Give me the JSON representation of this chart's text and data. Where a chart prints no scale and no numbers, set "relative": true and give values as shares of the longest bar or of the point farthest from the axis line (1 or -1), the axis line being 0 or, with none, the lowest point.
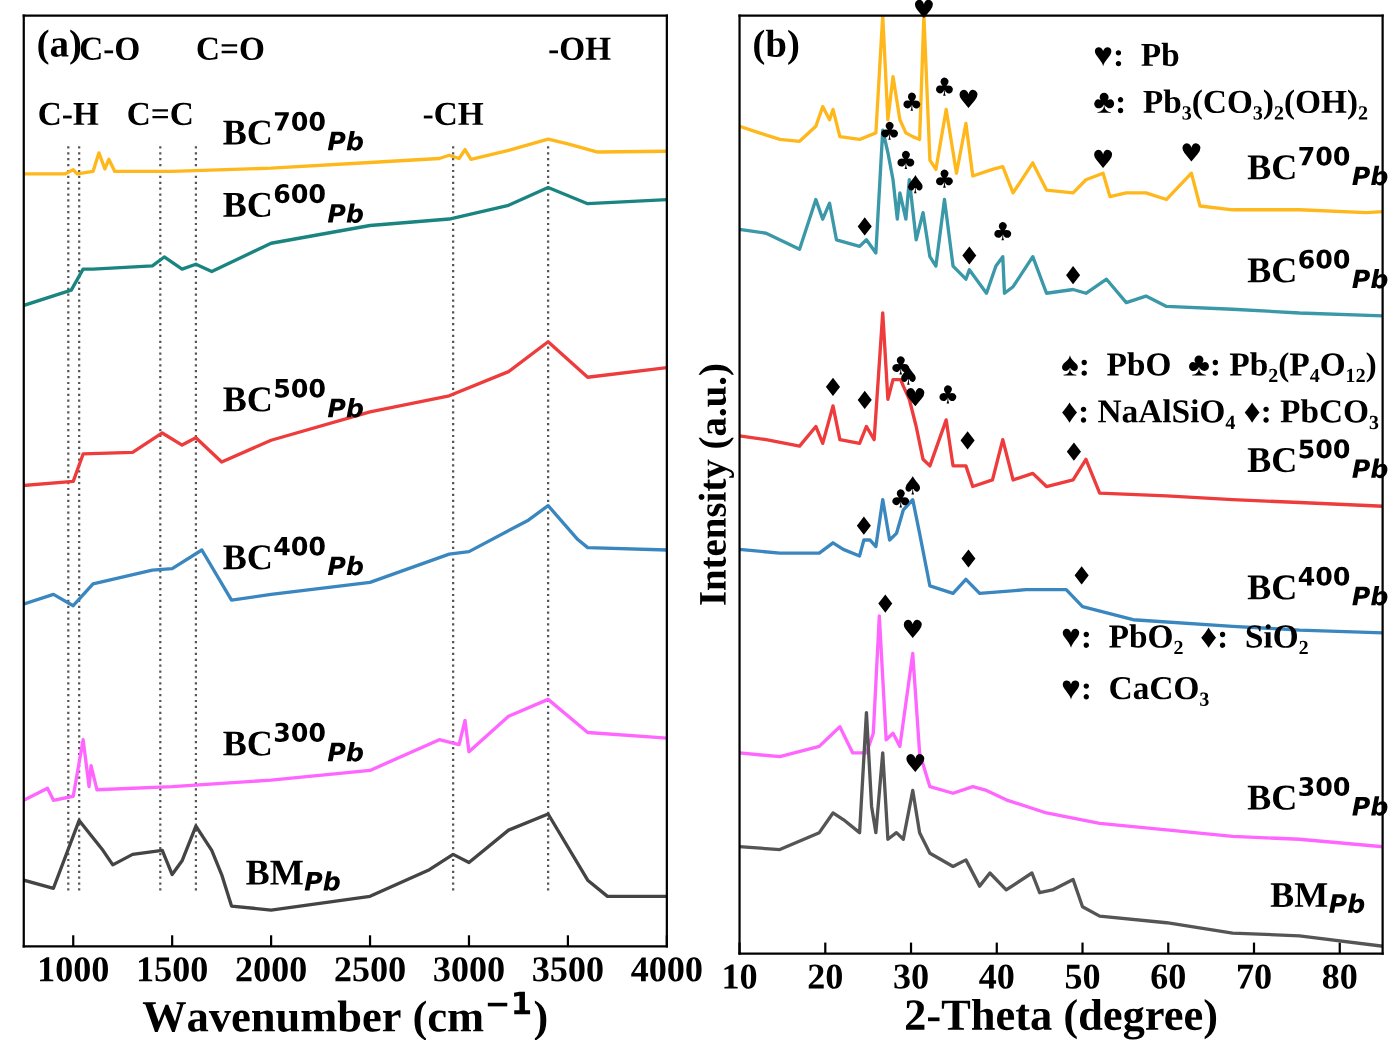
{
  "chart_data": [
    {
      "type": "line",
      "title": "(a)",
      "xlabel": "Wavenumber (cm$^{−1}$)",
      "relative": true,
      "xlim": [
        750,
        4000
      ],
      "xticks": [
        1000,
        1500,
        2000,
        2500,
        3000,
        3500,
        4000
      ],
      "grid": false,
      "line_style": "solid",
      "marker": "none",
      "series": [
        {
          "name": "BC$^{700}$$_{Pb}$",
          "color": "#ffb81c",
          "x": [
            750,
            960,
            1000,
            1020,
            1100,
            1130,
            1160,
            1180,
            1210,
            1500,
            2000,
            2500,
            2850,
            2900,
            2950,
            2980,
            3010,
            3200,
            3400,
            3500,
            3650,
            4000
          ],
          "values": [
            0.957,
            0.957,
            0.962,
            0.957,
            0.96,
            0.983,
            0.963,
            0.975,
            0.96,
            0.96,
            0.964,
            0.971,
            0.976,
            0.98,
            0.976,
            0.987,
            0.975,
            0.986,
            1.0,
            0.994,
            0.984,
            0.985
          ]
        },
        {
          "name": "BC$^{600}$$_{Pb}$",
          "color": "#1a8580",
          "x": [
            750,
            990,
            1050,
            1100,
            1400,
            1460,
            1550,
            1620,
            1700,
            2000,
            2500,
            2900,
            3200,
            3400,
            3600,
            4000
          ],
          "values": [
            0.794,
            0.813,
            0.839,
            0.839,
            0.843,
            0.854,
            0.839,
            0.845,
            0.836,
            0.871,
            0.893,
            0.901,
            0.918,
            0.94,
            0.92,
            0.925
          ]
        },
        {
          "name": "BC$^{500}$$_{Pb}$",
          "color": "#ee3b3b",
          "x": [
            750,
            1000,
            1050,
            1300,
            1450,
            1550,
            1620,
            1750,
            2000,
            2500,
            2900,
            3200,
            3400,
            3600,
            4000
          ],
          "values": [
            0.571,
            0.576,
            0.61,
            0.612,
            0.636,
            0.621,
            0.63,
            0.6,
            0.627,
            0.662,
            0.682,
            0.712,
            0.749,
            0.705,
            0.717
          ]
        },
        {
          "name": "BC$^{400}$$_{Pb}$",
          "color": "#3a87c0",
          "x": [
            750,
            900,
            1000,
            1100,
            1400,
            1500,
            1650,
            1800,
            2000,
            2500,
            2900,
            3000,
            3300,
            3400,
            3550,
            3600,
            4000
          ],
          "values": [
            0.424,
            0.436,
            0.422,
            0.449,
            0.466,
            0.468,
            0.491,
            0.429,
            0.436,
            0.451,
            0.486,
            0.489,
            0.528,
            0.546,
            0.504,
            0.494,
            0.491
          ]
        },
        {
          "name": "BC$^{300}$$_{Pb}$",
          "color": "#ff66ff",
          "x": [
            750,
            870,
            900,
            1000,
            1050,
            1080,
            1090,
            1120,
            1500,
            2000,
            2500,
            2850,
            2950,
            2980,
            3000,
            3200,
            3400,
            3600,
            4000
          ],
          "values": [
            0.181,
            0.196,
            0.181,
            0.186,
            0.256,
            0.198,
            0.224,
            0.194,
            0.198,
            0.206,
            0.218,
            0.256,
            0.25,
            0.28,
            0.241,
            0.285,
            0.306,
            0.265,
            0.258
          ]
        },
        {
          "name": "BM$_{Pb}$",
          "color": "#444444",
          "x": [
            750,
            900,
            1030,
            1150,
            1200,
            1300,
            1450,
            1500,
            1550,
            1620,
            1700,
            1750,
            1800,
            2000,
            2500,
            2800,
            2920,
            3000,
            3200,
            3400,
            3600,
            3700,
            4000
          ],
          "values": [
            0.082,
            0.072,
            0.156,
            0.119,
            0.101,
            0.114,
            0.119,
            0.089,
            0.106,
            0.149,
            0.119,
            0.089,
            0.05,
            0.045,
            0.062,
            0.095,
            0.114,
            0.104,
            0.144,
            0.164,
            0.082,
            0.062,
            0.062
          ]
        }
      ],
      "ref_lines": [
        {
          "axis": "x",
          "value": 975,
          "label": "C-H",
          "line_style": "dotted",
          "color": "#555555"
        },
        {
          "axis": "x",
          "value": 1030,
          "label": "C-O",
          "line_style": "dotted",
          "color": "#555555"
        },
        {
          "axis": "x",
          "value": 1440,
          "label": "C=C",
          "line_style": "dotted",
          "color": "#555555"
        },
        {
          "axis": "x",
          "value": 1620,
          "label": "C=O",
          "line_style": "dotted",
          "color": "#555555"
        },
        {
          "axis": "x",
          "value": 2920,
          "label": "-CH",
          "line_style": "dotted",
          "color": "#555555"
        },
        {
          "axis": "x",
          "value": 3400,
          "label": "-OH",
          "line_style": "dotted",
          "color": "#555555"
        }
      ]
    },
    {
      "type": "line",
      "title": "(b)",
      "xlabel": "2-Theta (degree)",
      "ylabel": "Intensity (a.u.)",
      "relative": true,
      "xlim": [
        10,
        85
      ],
      "xticks": [
        10,
        20,
        30,
        40,
        50,
        60,
        70,
        80
      ],
      "grid": false,
      "line_style": "solid",
      "marker": "none",
      "series": [
        {
          "name": "BC$^{700}$$_{Pb}$",
          "color": "#ffb81c",
          "x": [
            10,
            12.3,
            14.7,
            17.0,
            18.9,
            19.7,
            20.5,
            20.9,
            21.7,
            24.0,
            25.9,
            26.7,
            27.3,
            27.9,
            28.7,
            29.4,
            30.2,
            31.0,
            31.5,
            32.2,
            32.9,
            34.1,
            35.3,
            36.4,
            37.2,
            39.5,
            40.7,
            41.9,
            44.2,
            45.8,
            48.9,
            50.4,
            52.4,
            53.2,
            55.1,
            57.4,
            59.8,
            62.7,
            63.7,
            67.5,
            75.3,
            83.1,
            85
          ],
          "values": [
            0.882,
            0.875,
            0.868,
            0.866,
            0.882,
            0.903,
            0.889,
            0.9,
            0.871,
            0.868,
            0.875,
            1.0,
            0.889,
            0.935,
            0.889,
            0.875,
            0.871,
            0.868,
            1.0,
            0.846,
            0.836,
            0.9,
            0.832,
            0.885,
            0.829,
            0.836,
            0.839,
            0.811,
            0.843,
            0.814,
            0.811,
            0.825,
            0.832,
            0.807,
            0.811,
            0.811,
            0.804,
            0.832,
            0.797,
            0.793,
            0.793,
            0.79,
            0.791
          ]
        },
        {
          "name": "BC$^{600}$$_{Pb}$",
          "color": "#3a98a8",
          "x": [
            10,
            13.1,
            17.0,
            18.9,
            19.7,
            20.5,
            21.3,
            24.0,
            24.8,
            25.9,
            26.7,
            27.3,
            27.9,
            28.4,
            28.7,
            29.4,
            29.8,
            30.6,
            31.4,
            32.2,
            32.9,
            33.9,
            34.9,
            36.4,
            36.8,
            38.8,
            39.9,
            40.7,
            40.9,
            41.9,
            44.2,
            45.8,
            48.9,
            50.4,
            52.8,
            55.1,
            57.4,
            59.8,
            67.5,
            75.3,
            85
          ],
          "values": [
            0.772,
            0.768,
            0.751,
            0.804,
            0.783,
            0.8,
            0.761,
            0.754,
            0.761,
            0.747,
            0.878,
            0.854,
            0.825,
            0.783,
            0.811,
            0.783,
            0.825,
            0.761,
            0.79,
            0.743,
            0.733,
            0.804,
            0.733,
            0.719,
            0.729,
            0.704,
            0.733,
            0.743,
            0.704,
            0.711,
            0.743,
            0.704,
            0.708,
            0.704,
            0.719,
            0.694,
            0.701,
            0.69,
            0.687,
            0.683,
            0.68
          ]
        },
        {
          "name": "BC$^{500}$$_{Pb}$",
          "color": "#ee3b3b",
          "x": [
            10,
            13.1,
            17.0,
            18.9,
            19.7,
            20.9,
            21.7,
            24.0,
            24.8,
            25.7,
            26.7,
            27.3,
            27.9,
            28.8,
            29.1,
            29.8,
            30.6,
            31.4,
            32.2,
            34.1,
            34.9,
            36.4,
            37.2,
            39.5,
            40.7,
            41.9,
            44.2,
            45.8,
            48.9,
            50.4,
            52.0,
            59.8,
            67.5,
            75.3,
            85
          ],
          "values": [
            0.552,
            0.548,
            0.541,
            0.562,
            0.544,
            0.584,
            0.548,
            0.544,
            0.562,
            0.548,
            0.683,
            0.591,
            0.612,
            0.612,
            0.605,
            0.591,
            0.562,
            0.527,
            0.52,
            0.569,
            0.52,
            0.52,
            0.498,
            0.505,
            0.548,
            0.505,
            0.512,
            0.498,
            0.505,
            0.527,
            0.491,
            0.488,
            0.484,
            0.481,
            0.477
          ]
        },
        {
          "name": "BC$^{400}$$_{Pb}$",
          "color": "#3a87c0",
          "x": [
            10,
            14.7,
            19.3,
            20.9,
            22.1,
            24.0,
            24.5,
            25.2,
            25.9,
            26.7,
            27.5,
            28.3,
            29.1,
            30.2,
            31.0,
            32.2,
            34.9,
            36.4,
            38.0,
            43.4,
            48.1,
            50.0,
            55.9,
            67.5,
            75.3,
            85
          ],
          "values": [
            0.431,
            0.427,
            0.427,
            0.438,
            0.431,
            0.424,
            0.441,
            0.441,
            0.434,
            0.484,
            0.441,
            0.448,
            0.473,
            0.484,
            0.448,
            0.392,
            0.384,
            0.399,
            0.384,
            0.388,
            0.388,
            0.37,
            0.356,
            0.349,
            0.345,
            0.342
          ]
        },
        {
          "name": "BC$^{300}$$_{Pb}$",
          "color": "#ff66ff",
          "x": [
            10,
            14.7,
            19.3,
            20.9,
            21.7,
            23.2,
            24.8,
            25.6,
            26.3,
            27.1,
            27.9,
            28.7,
            30.2,
            31.0,
            32.2,
            34.9,
            37.2,
            38.8,
            41.1,
            45.8,
            52.0,
            59.8,
            67.5,
            75.3,
            85
          ],
          "values": [
            0.214,
            0.21,
            0.221,
            0.235,
            0.242,
            0.214,
            0.214,
            0.235,
            0.36,
            0.228,
            0.235,
            0.221,
            0.32,
            0.214,
            0.178,
            0.171,
            0.178,
            0.174,
            0.164,
            0.15,
            0.139,
            0.132,
            0.125,
            0.122,
            0.114
          ]
        },
        {
          "name": "BM$_{Pb}$",
          "color": "#555555",
          "x": [
            10,
            14.7,
            19.3,
            20.9,
            22.1,
            24.0,
            24.8,
            25.4,
            25.9,
            26.7,
            27.3,
            28.3,
            29.1,
            30.2,
            31.0,
            32.2,
            34.9,
            36.4,
            38.0,
            39.2,
            41.1,
            44.1,
            45.0,
            46.5,
            48.9,
            50.0,
            52.0,
            59.8,
            67.5,
            75.3,
            85
          ],
          "values": [
            0.114,
            0.111,
            0.129,
            0.15,
            0.143,
            0.129,
            0.257,
            0.157,
            0.129,
            0.214,
            0.122,
            0.129,
            0.122,
            0.174,
            0.129,
            0.107,
            0.093,
            0.1,
            0.072,
            0.086,
            0.068,
            0.086,
            0.065,
            0.068,
            0.079,
            0.05,
            0.04,
            0.033,
            0.022,
            0.019,
            0.008
          ]
        }
      ],
      "annotations": [
        "♥:  Pb",
        "♣:  Pb₃(CO₃)₂(OH)₂",
        "♠:  PbO  ♣: Pb₂(P₄O₁₂)",
        "♦: NaAlSiO₄ ♦: PbCO₃",
        "♥:  PbO₂  ♦:  SiO₂",
        "♥:  CaCO₃",
        {
          "text": "♥",
          "x": 31.5,
          "y": 0.992
        },
        {
          "text": "♣",
          "x": 33.9,
          "y": 0.909
        },
        {
          "text": "♥",
          "x": 36.7,
          "y": 0.896
        },
        {
          "text": "♣",
          "x": 30.1,
          "y": 0.893
        },
        {
          "text": "♥",
          "x": 52.4,
          "y": 0.832
        },
        {
          "text": "♥",
          "x": 62.7,
          "y": 0.839
        },
        {
          "text": "♣",
          "x": 27.5,
          "y": 0.862
        },
        {
          "text": "♣",
          "x": 29.4,
          "y": 0.831
        },
        {
          "text": "♠",
          "x": 30.5,
          "y": 0.805
        },
        {
          "text": "♣",
          "x": 33.9,
          "y": 0.811
        },
        {
          "text": "♦",
          "x": 24.6,
          "y": 0.76
        },
        {
          "text": "♦",
          "x": 36.8,
          "y": 0.729
        },
        {
          "text": "♣",
          "x": 40.7,
          "y": 0.755
        },
        {
          "text": "♦",
          "x": 48.9,
          "y": 0.708
        },
        {
          "text": "♣",
          "x": 28.8,
          "y": 0.612
        },
        {
          "text": "♠",
          "x": 29.7,
          "y": 0.601
        },
        {
          "text": "♦",
          "x": 20.9,
          "y": 0.589
        },
        {
          "text": "♦",
          "x": 24.6,
          "y": 0.575
        },
        {
          "text": "♥",
          "x": 30.5,
          "y": 0.578
        },
        {
          "text": "♣",
          "x": 34.3,
          "y": 0.581
        },
        {
          "text": "♦",
          "x": 36.6,
          "y": 0.532
        },
        {
          "text": "♦",
          "x": 49.0,
          "y": 0.52
        },
        {
          "text": "♠",
          "x": 30.2,
          "y": 0.484
        },
        {
          "text": "♣",
          "x": 28.8,
          "y": 0.47
        },
        {
          "text": "♦",
          "x": 24.5,
          "y": 0.441
        },
        {
          "text": "♦",
          "x": 36.7,
          "y": 0.406
        },
        {
          "text": "♦",
          "x": 49.9,
          "y": 0.388
        },
        {
          "text": "♦",
          "x": 27.0,
          "y": 0.358
        },
        {
          "text": "♥",
          "x": 30.2,
          "y": 0.331
        },
        {
          "text": "♥",
          "x": 30.5,
          "y": 0.188
        }
      ]
    }
  ]
}
